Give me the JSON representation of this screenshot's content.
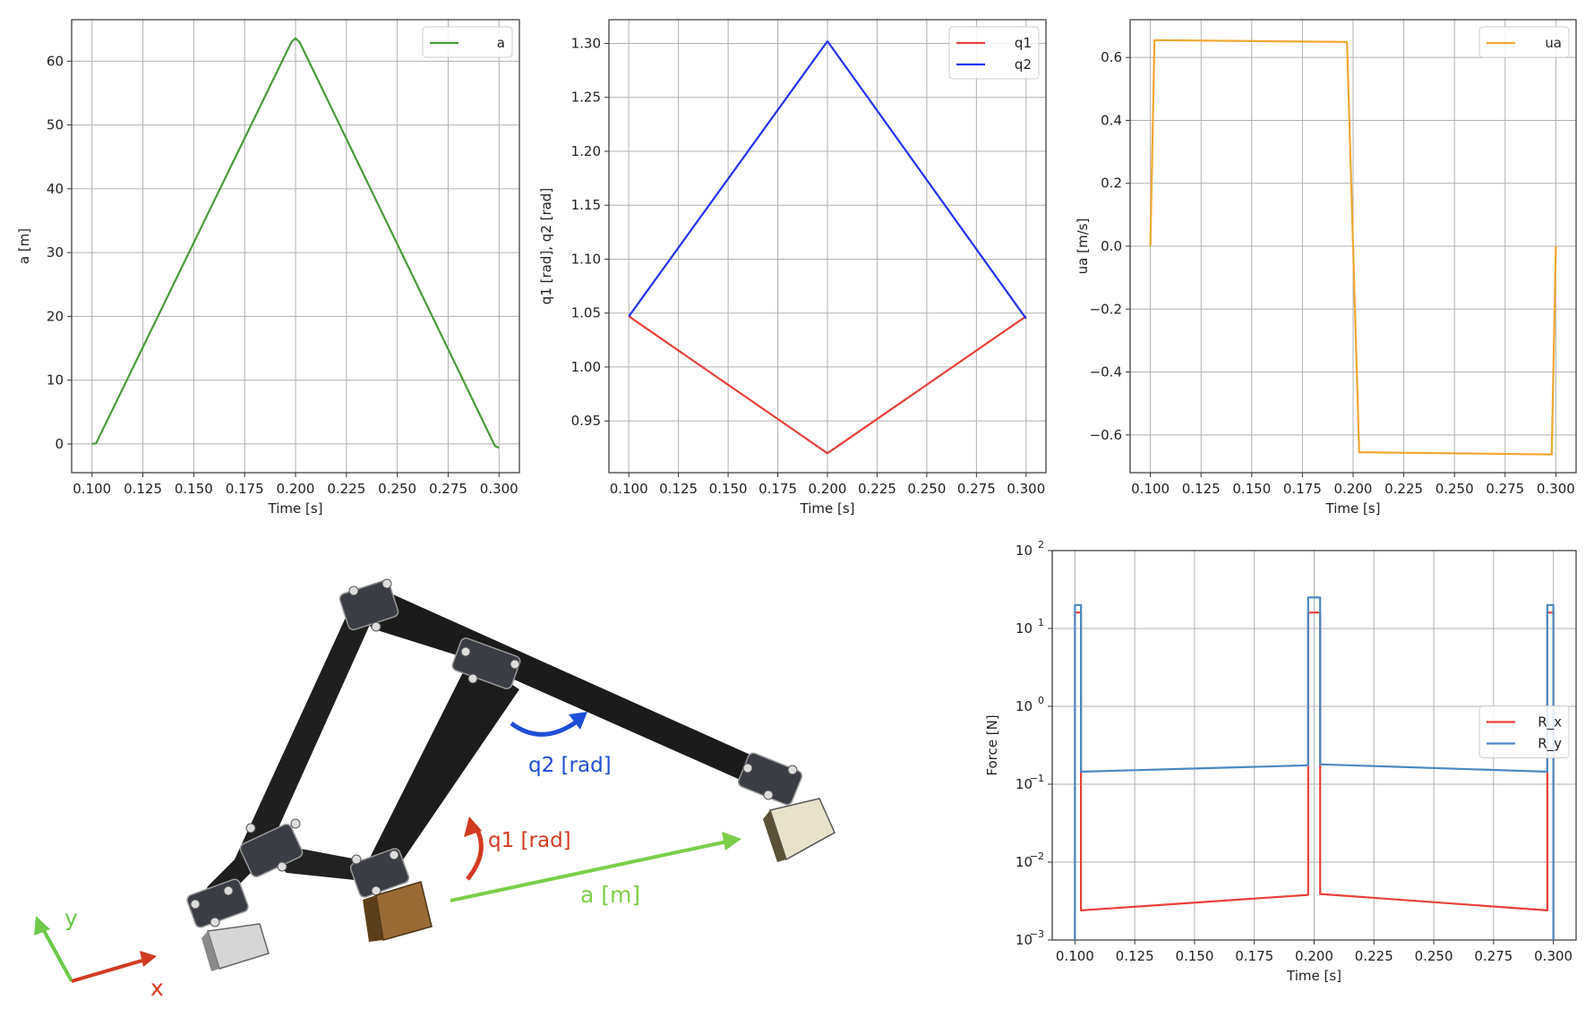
{
  "chart_data": [
    {
      "type": "line",
      "xlabel": "Time [s]",
      "ylabel": "a [m]",
      "xlim": [
        0.09,
        0.31
      ],
      "ylim": [
        -4.5,
        66.5
      ],
      "xticks": [
        0.1,
        0.125,
        0.15,
        0.175,
        0.2,
        0.225,
        0.25,
        0.275,
        0.3
      ],
      "xtick_labels": [
        "0.100",
        "0.125",
        "0.150",
        "0.175",
        "0.200",
        "0.225",
        "0.250",
        "0.275",
        "0.300"
      ],
      "yticks": [
        0,
        10,
        20,
        30,
        40,
        50,
        60
      ],
      "ytick_labels": [
        "0",
        "10",
        "20",
        "30",
        "40",
        "50",
        "60"
      ],
      "grid": true,
      "legend_position": "top-right",
      "series": [
        {
          "name": "a",
          "color": "#4a9a3c",
          "points": [
            [
              0.1,
              0.0
            ],
            [
              0.102,
              0.1
            ],
            [
              0.198,
              63.0
            ],
            [
              0.2,
              63.6
            ],
            [
              0.202,
              63.0
            ],
            [
              0.298,
              -0.3
            ],
            [
              0.3,
              -0.6
            ]
          ]
        }
      ]
    },
    {
      "type": "line",
      "xlabel": "Time [s]",
      "ylabel": "q1 [rad], q2 [rad]",
      "xlim": [
        0.09,
        0.31
      ],
      "ylim": [
        0.902,
        1.322
      ],
      "xticks": [
        0.1,
        0.125,
        0.15,
        0.175,
        0.2,
        0.225,
        0.25,
        0.275,
        0.3
      ],
      "xtick_labels": [
        "0.100",
        "0.125",
        "0.150",
        "0.175",
        "0.200",
        "0.225",
        "0.250",
        "0.275",
        "0.300"
      ],
      "yticks": [
        0.95,
        1.0,
        1.05,
        1.1,
        1.15,
        1.2,
        1.25,
        1.3
      ],
      "ytick_labels": [
        "0.95",
        "1.00",
        "1.05",
        "1.10",
        "1.15",
        "1.20",
        "1.25",
        "1.30"
      ],
      "grid": true,
      "legend_position": "top-right",
      "series": [
        {
          "name": "q1",
          "color": "#e8403a",
          "points": [
            [
              0.1,
              1.047
            ],
            [
              0.2,
              0.92
            ],
            [
              0.3,
              1.047
            ]
          ]
        },
        {
          "name": "q2",
          "color": "#2233ee",
          "points": [
            [
              0.1,
              1.047
            ],
            [
              0.102,
              1.052
            ],
            [
              0.198,
              1.297
            ],
            [
              0.2,
              1.302
            ],
            [
              0.202,
              1.297
            ],
            [
              0.298,
              1.05
            ],
            [
              0.3,
              1.045
            ]
          ]
        }
      ]
    },
    {
      "type": "line",
      "xlabel": "Time [s]",
      "ylabel": "ua [m/s]",
      "xlim": [
        0.09,
        0.31
      ],
      "ylim": [
        -0.72,
        0.72
      ],
      "xticks": [
        0.1,
        0.125,
        0.15,
        0.175,
        0.2,
        0.225,
        0.25,
        0.275,
        0.3
      ],
      "xtick_labels": [
        "0.100",
        "0.125",
        "0.150",
        "0.175",
        "0.200",
        "0.225",
        "0.250",
        "0.275",
        "0.300"
      ],
      "yticks": [
        -0.6,
        -0.4,
        -0.2,
        0.0,
        0.2,
        0.4,
        0.6
      ],
      "ytick_labels": [
        "−0.6",
        "−0.4",
        "−0.2",
        "0.0",
        "0.2",
        "0.4",
        "0.6"
      ],
      "grid": true,
      "legend_position": "top-right",
      "series": [
        {
          "name": "ua",
          "color": "#f0a733",
          "points": [
            [
              0.1,
              0.0
            ],
            [
              0.102,
              0.655
            ],
            [
              0.197,
              0.649
            ],
            [
              0.203,
              -0.655
            ],
            [
              0.298,
              -0.662
            ],
            [
              0.3,
              0.0
            ]
          ]
        }
      ]
    },
    {
      "type": "line",
      "xlabel": "Time [s]",
      "ylabel": "Force [N]",
      "yscale": "log",
      "xlim": [
        0.0905,
        0.3095
      ],
      "ylim": [
        0.001,
        100
      ],
      "xticks": [
        0.1,
        0.125,
        0.15,
        0.175,
        0.2,
        0.225,
        0.25,
        0.275,
        0.3
      ],
      "xtick_labels": [
        "0.100",
        "0.125",
        "0.150",
        "0.175",
        "0.200",
        "0.225",
        "0.250",
        "0.275",
        "0.300"
      ],
      "yticks": [
        0.001,
        0.01,
        0.1,
        1,
        10,
        100
      ],
      "ytick_labels": [
        "10",
        "10",
        "10",
        "10",
        "10",
        "10"
      ],
      "ytick_exponents": [
        "−3",
        "−2",
        "−1",
        "0",
        "1",
        "2"
      ],
      "grid": true,
      "legend_position": "center-right",
      "series": [
        {
          "name": "R_x",
          "color": "#e8403a",
          "points": [
            [
              0.1,
              0.001
            ],
            [
              0.1,
              16
            ],
            [
              0.1025,
              16
            ],
            [
              0.1025,
              0.0024
            ],
            [
              0.1975,
              0.0038
            ],
            [
              0.1975,
              16
            ],
            [
              0.2025,
              16
            ],
            [
              0.2025,
              0.0039
            ],
            [
              0.2975,
              0.0024
            ],
            [
              0.2975,
              16
            ],
            [
              0.3,
              16
            ],
            [
              0.3,
              0.001
            ]
          ]
        },
        {
          "name": "R_y",
          "color": "#4d88c0",
          "points": [
            [
              0.1,
              0.001
            ],
            [
              0.1,
              20
            ],
            [
              0.1025,
              20
            ],
            [
              0.1025,
              0.145
            ],
            [
              0.1975,
              0.175
            ],
            [
              0.1975,
              25
            ],
            [
              0.2025,
              25
            ],
            [
              0.2025,
              0.18
            ],
            [
              0.2975,
              0.145
            ],
            [
              0.2975,
              20
            ],
            [
              0.3,
              20
            ],
            [
              0.3,
              0.001
            ]
          ]
        }
      ]
    }
  ],
  "diagram": {
    "labels": {
      "q2": "q2 [rad]",
      "q1": "q1 [rad]",
      "a": "a [m]",
      "y": "y",
      "x": "x"
    },
    "colors": {
      "q2": "#1f4fd8",
      "q1": "#d23a22",
      "a": "#7cce4a",
      "y_axis": "#6cc94a",
      "x_axis": "#d23a22"
    }
  }
}
